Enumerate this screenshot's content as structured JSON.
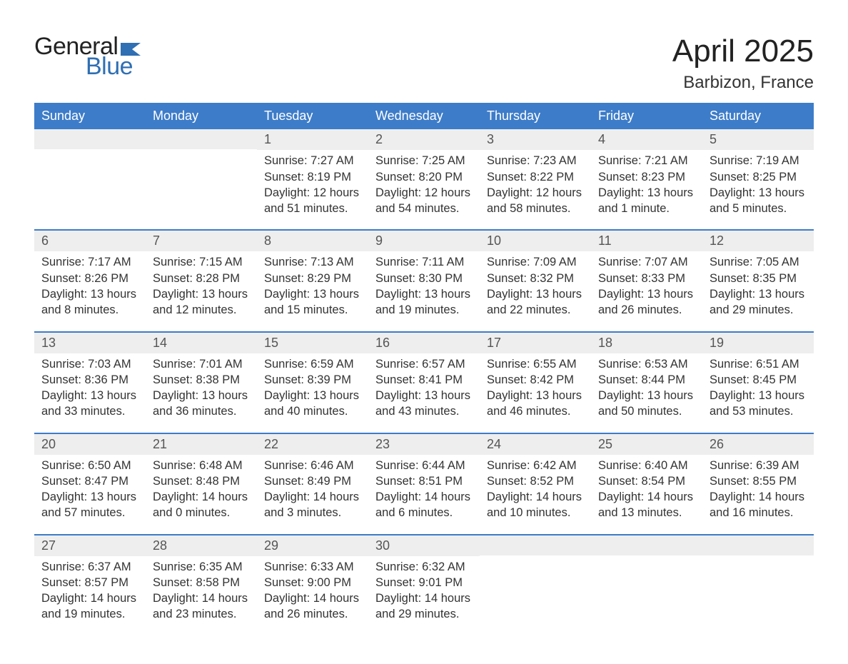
{
  "logo": {
    "text_general": "General",
    "text_blue": "Blue",
    "flag_color": "#2f6fb3"
  },
  "title": {
    "month": "April 2025",
    "location": "Barbizon, France"
  },
  "colors": {
    "header_bg": "#3d7cc9",
    "header_text": "#ffffff",
    "daynum_bg": "#eeeeee",
    "daynum_text": "#555555",
    "body_text": "#333333",
    "week_border": "#3d7cc9"
  },
  "weekdays": [
    "Sunday",
    "Monday",
    "Tuesday",
    "Wednesday",
    "Thursday",
    "Friday",
    "Saturday"
  ],
  "weeks": [
    [
      {
        "day": "",
        "sunrise": "",
        "sunset": "",
        "daylight1": "",
        "daylight2": ""
      },
      {
        "day": "",
        "sunrise": "",
        "sunset": "",
        "daylight1": "",
        "daylight2": ""
      },
      {
        "day": "1",
        "sunrise": "Sunrise: 7:27 AM",
        "sunset": "Sunset: 8:19 PM",
        "daylight1": "Daylight: 12 hours",
        "daylight2": "and 51 minutes."
      },
      {
        "day": "2",
        "sunrise": "Sunrise: 7:25 AM",
        "sunset": "Sunset: 8:20 PM",
        "daylight1": "Daylight: 12 hours",
        "daylight2": "and 54 minutes."
      },
      {
        "day": "3",
        "sunrise": "Sunrise: 7:23 AM",
        "sunset": "Sunset: 8:22 PM",
        "daylight1": "Daylight: 12 hours",
        "daylight2": "and 58 minutes."
      },
      {
        "day": "4",
        "sunrise": "Sunrise: 7:21 AM",
        "sunset": "Sunset: 8:23 PM",
        "daylight1": "Daylight: 13 hours",
        "daylight2": "and 1 minute."
      },
      {
        "day": "5",
        "sunrise": "Sunrise: 7:19 AM",
        "sunset": "Sunset: 8:25 PM",
        "daylight1": "Daylight: 13 hours",
        "daylight2": "and 5 minutes."
      }
    ],
    [
      {
        "day": "6",
        "sunrise": "Sunrise: 7:17 AM",
        "sunset": "Sunset: 8:26 PM",
        "daylight1": "Daylight: 13 hours",
        "daylight2": "and 8 minutes."
      },
      {
        "day": "7",
        "sunrise": "Sunrise: 7:15 AM",
        "sunset": "Sunset: 8:28 PM",
        "daylight1": "Daylight: 13 hours",
        "daylight2": "and 12 minutes."
      },
      {
        "day": "8",
        "sunrise": "Sunrise: 7:13 AM",
        "sunset": "Sunset: 8:29 PM",
        "daylight1": "Daylight: 13 hours",
        "daylight2": "and 15 minutes."
      },
      {
        "day": "9",
        "sunrise": "Sunrise: 7:11 AM",
        "sunset": "Sunset: 8:30 PM",
        "daylight1": "Daylight: 13 hours",
        "daylight2": "and 19 minutes."
      },
      {
        "day": "10",
        "sunrise": "Sunrise: 7:09 AM",
        "sunset": "Sunset: 8:32 PM",
        "daylight1": "Daylight: 13 hours",
        "daylight2": "and 22 minutes."
      },
      {
        "day": "11",
        "sunrise": "Sunrise: 7:07 AM",
        "sunset": "Sunset: 8:33 PM",
        "daylight1": "Daylight: 13 hours",
        "daylight2": "and 26 minutes."
      },
      {
        "day": "12",
        "sunrise": "Sunrise: 7:05 AM",
        "sunset": "Sunset: 8:35 PM",
        "daylight1": "Daylight: 13 hours",
        "daylight2": "and 29 minutes."
      }
    ],
    [
      {
        "day": "13",
        "sunrise": "Sunrise: 7:03 AM",
        "sunset": "Sunset: 8:36 PM",
        "daylight1": "Daylight: 13 hours",
        "daylight2": "and 33 minutes."
      },
      {
        "day": "14",
        "sunrise": "Sunrise: 7:01 AM",
        "sunset": "Sunset: 8:38 PM",
        "daylight1": "Daylight: 13 hours",
        "daylight2": "and 36 minutes."
      },
      {
        "day": "15",
        "sunrise": "Sunrise: 6:59 AM",
        "sunset": "Sunset: 8:39 PM",
        "daylight1": "Daylight: 13 hours",
        "daylight2": "and 40 minutes."
      },
      {
        "day": "16",
        "sunrise": "Sunrise: 6:57 AM",
        "sunset": "Sunset: 8:41 PM",
        "daylight1": "Daylight: 13 hours",
        "daylight2": "and 43 minutes."
      },
      {
        "day": "17",
        "sunrise": "Sunrise: 6:55 AM",
        "sunset": "Sunset: 8:42 PM",
        "daylight1": "Daylight: 13 hours",
        "daylight2": "and 46 minutes."
      },
      {
        "day": "18",
        "sunrise": "Sunrise: 6:53 AM",
        "sunset": "Sunset: 8:44 PM",
        "daylight1": "Daylight: 13 hours",
        "daylight2": "and 50 minutes."
      },
      {
        "day": "19",
        "sunrise": "Sunrise: 6:51 AM",
        "sunset": "Sunset: 8:45 PM",
        "daylight1": "Daylight: 13 hours",
        "daylight2": "and 53 minutes."
      }
    ],
    [
      {
        "day": "20",
        "sunrise": "Sunrise: 6:50 AM",
        "sunset": "Sunset: 8:47 PM",
        "daylight1": "Daylight: 13 hours",
        "daylight2": "and 57 minutes."
      },
      {
        "day": "21",
        "sunrise": "Sunrise: 6:48 AM",
        "sunset": "Sunset: 8:48 PM",
        "daylight1": "Daylight: 14 hours",
        "daylight2": "and 0 minutes."
      },
      {
        "day": "22",
        "sunrise": "Sunrise: 6:46 AM",
        "sunset": "Sunset: 8:49 PM",
        "daylight1": "Daylight: 14 hours",
        "daylight2": "and 3 minutes."
      },
      {
        "day": "23",
        "sunrise": "Sunrise: 6:44 AM",
        "sunset": "Sunset: 8:51 PM",
        "daylight1": "Daylight: 14 hours",
        "daylight2": "and 6 minutes."
      },
      {
        "day": "24",
        "sunrise": "Sunrise: 6:42 AM",
        "sunset": "Sunset: 8:52 PM",
        "daylight1": "Daylight: 14 hours",
        "daylight2": "and 10 minutes."
      },
      {
        "day": "25",
        "sunrise": "Sunrise: 6:40 AM",
        "sunset": "Sunset: 8:54 PM",
        "daylight1": "Daylight: 14 hours",
        "daylight2": "and 13 minutes."
      },
      {
        "day": "26",
        "sunrise": "Sunrise: 6:39 AM",
        "sunset": "Sunset: 8:55 PM",
        "daylight1": "Daylight: 14 hours",
        "daylight2": "and 16 minutes."
      }
    ],
    [
      {
        "day": "27",
        "sunrise": "Sunrise: 6:37 AM",
        "sunset": "Sunset: 8:57 PM",
        "daylight1": "Daylight: 14 hours",
        "daylight2": "and 19 minutes."
      },
      {
        "day": "28",
        "sunrise": "Sunrise: 6:35 AM",
        "sunset": "Sunset: 8:58 PM",
        "daylight1": "Daylight: 14 hours",
        "daylight2": "and 23 minutes."
      },
      {
        "day": "29",
        "sunrise": "Sunrise: 6:33 AM",
        "sunset": "Sunset: 9:00 PM",
        "daylight1": "Daylight: 14 hours",
        "daylight2": "and 26 minutes."
      },
      {
        "day": "30",
        "sunrise": "Sunrise: 6:32 AM",
        "sunset": "Sunset: 9:01 PM",
        "daylight1": "Daylight: 14 hours",
        "daylight2": "and 29 minutes."
      },
      {
        "day": "",
        "sunrise": "",
        "sunset": "",
        "daylight1": "",
        "daylight2": ""
      },
      {
        "day": "",
        "sunrise": "",
        "sunset": "",
        "daylight1": "",
        "daylight2": ""
      },
      {
        "day": "",
        "sunrise": "",
        "sunset": "",
        "daylight1": "",
        "daylight2": ""
      }
    ]
  ]
}
